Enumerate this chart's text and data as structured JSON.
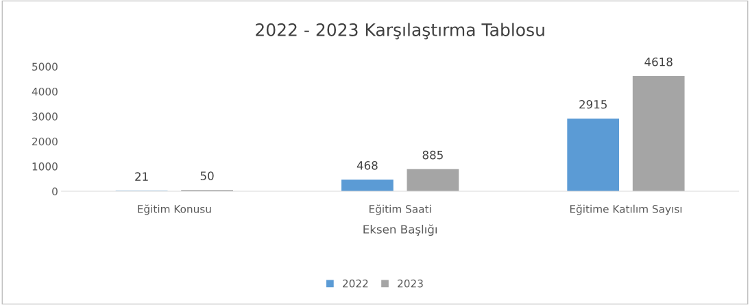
{
  "chart_data": {
    "type": "bar",
    "title": "2022 - 2023 Karşılaştırma Tablosu",
    "xlabel": "Eksen Başlığı",
    "categories": [
      "Eğitim Konusu",
      "Eğitim Saati",
      "Eğitime Katılım Sayısı"
    ],
    "series": [
      {
        "name": "2022",
        "color": "#5b9bd5",
        "values": [
          21,
          468,
          2915
        ]
      },
      {
        "name": "2023",
        "color": "#a5a5a5",
        "values": [
          50,
          885,
          4618
        ]
      }
    ],
    "ylim": [
      0,
      5000
    ],
    "yticks": [
      0,
      1000,
      2000,
      3000,
      4000,
      5000
    ],
    "grid": false,
    "legend": "bottom",
    "data_labels": true
  }
}
